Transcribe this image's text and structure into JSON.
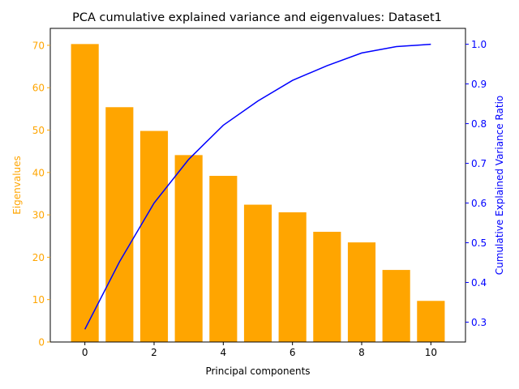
{
  "chart_data": {
    "type": "bar",
    "title": "PCA cumulative explained variance and eigenvalues: Dataset1",
    "xlabel": "Principal components",
    "ylabel": "Eigenvalues",
    "y2label": "Cumulative Explained Variance Ratio",
    "x": [
      0,
      1,
      2,
      3,
      4,
      5,
      6,
      7,
      8,
      9,
      10
    ],
    "xticks": [
      0,
      2,
      4,
      6,
      8,
      10
    ],
    "xlim": [
      -1,
      11
    ],
    "ylim": [
      0,
      74
    ],
    "yticks": [
      0,
      10,
      20,
      30,
      40,
      50,
      60,
      70
    ],
    "y2lim": [
      0.25,
      1.04
    ],
    "y2ticks": [
      0.3,
      0.4,
      0.5,
      0.6,
      0.7,
      0.8,
      0.9,
      1.0
    ],
    "grid": false,
    "series": [
      {
        "type": "bar",
        "axis": "left",
        "color": "#ffa500",
        "values": [
          70.3,
          55.4,
          49.8,
          44.1,
          39.2,
          32.4,
          30.6,
          26.0,
          23.5,
          17.0,
          9.7
        ]
      },
      {
        "type": "line",
        "axis": "right",
        "color": "#0000ff",
        "values": [
          0.282,
          0.452,
          0.6,
          0.71,
          0.796,
          0.857,
          0.909,
          0.946,
          0.978,
          0.994,
          1.0
        ]
      }
    ],
    "left_axis_color": "#ffa500",
    "right_axis_color": "#0000ff"
  }
}
